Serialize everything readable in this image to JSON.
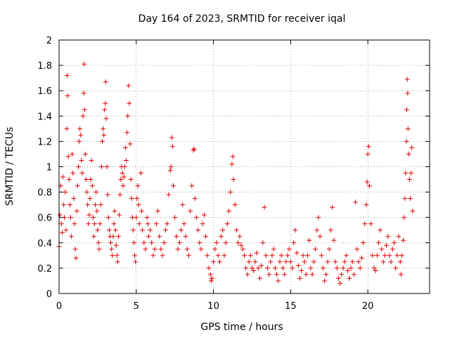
{
  "chart_data": {
    "type": "scatter",
    "title": "Day 164 of 2023, SRMTID for receiver iqal",
    "xlabel": "GPS time / hours",
    "ylabel": "SRMTID / TECUs",
    "xlim": [
      0,
      24
    ],
    "ylim": [
      0,
      2
    ],
    "x_ticks": [
      0,
      5,
      10,
      15,
      20
    ],
    "x_tick_labels": [
      "0",
      "5",
      "10",
      "15",
      "20"
    ],
    "y_ticks": [
      0,
      0.2,
      0.4,
      0.6,
      0.8,
      1,
      1.2,
      1.4,
      1.6,
      1.8,
      2
    ],
    "y_tick_labels": [
      "0",
      "0.2",
      "0.4",
      "0.6",
      "0.8",
      "1",
      "1.2",
      "1.4",
      "1.6",
      "1.8",
      "2"
    ],
    "grid": true,
    "marker": "+",
    "color": "#e00000",
    "series": [
      {
        "name": "SRMTID",
        "points": [
          [
            0.0,
            0.37
          ],
          [
            0.05,
            0.62
          ],
          [
            0.1,
            0.85
          ],
          [
            0.15,
            0.55
          ],
          [
            0.2,
            0.48
          ],
          [
            0.25,
            0.92
          ],
          [
            0.3,
            0.7
          ],
          [
            0.35,
            0.6
          ],
          [
            0.4,
            0.8
          ],
          [
            0.45,
            0.5
          ],
          [
            0.5,
            1.3
          ],
          [
            0.52,
            1.72
          ],
          [
            0.55,
            1.56
          ],
          [
            0.6,
            1.08
          ],
          [
            0.65,
            0.9
          ],
          [
            0.7,
            0.7
          ],
          [
            0.75,
            0.6
          ],
          [
            0.8,
            0.45
          ],
          [
            0.85,
            1.1
          ],
          [
            0.9,
            0.95
          ],
          [
            0.95,
            0.75
          ],
          [
            1.0,
            0.55
          ],
          [
            1.05,
            0.35
          ],
          [
            1.1,
            0.28
          ],
          [
            1.15,
            0.65
          ],
          [
            1.2,
            0.85
          ],
          [
            1.25,
            1.0
          ],
          [
            1.3,
            1.2
          ],
          [
            1.35,
            1.3
          ],
          [
            1.4,
            1.25
          ],
          [
            1.45,
            1.05
          ],
          [
            1.5,
            0.95
          ],
          [
            1.55,
            1.4
          ],
          [
            1.6,
            1.58
          ],
          [
            1.62,
            1.81
          ],
          [
            1.65,
            1.45
          ],
          [
            1.7,
            1.1
          ],
          [
            1.75,
            0.9
          ],
          [
            1.8,
            0.8
          ],
          [
            1.85,
            0.7
          ],
          [
            1.9,
            0.55
          ],
          [
            1.95,
            0.62
          ],
          [
            2.0,
            0.75
          ],
          [
            2.05,
            0.9
          ],
          [
            2.1,
            1.05
          ],
          [
            2.15,
            0.85
          ],
          [
            2.2,
            0.6
          ],
          [
            2.25,
            0.45
          ],
          [
            2.3,
            0.55
          ],
          [
            2.35,
            0.7
          ],
          [
            2.4,
            0.8
          ],
          [
            2.45,
            0.65
          ],
          [
            2.5,
            0.5
          ],
          [
            2.55,
            0.4
          ],
          [
            2.6,
            0.35
          ],
          [
            2.65,
            0.55
          ],
          [
            2.7,
            0.7
          ],
          [
            2.75,
            1.0
          ],
          [
            2.8,
            1.2
          ],
          [
            2.85,
            1.3
          ],
          [
            2.9,
            1.25
          ],
          [
            2.95,
            1.45
          ],
          [
            3.0,
            1.5
          ],
          [
            3.02,
            1.67
          ],
          [
            3.05,
            1.38
          ],
          [
            3.1,
            1.0
          ],
          [
            3.15,
            0.78
          ],
          [
            3.2,
            0.6
          ],
          [
            3.25,
            0.5
          ],
          [
            3.3,
            0.45
          ],
          [
            3.35,
            0.4
          ],
          [
            3.4,
            0.35
          ],
          [
            3.45,
            0.3
          ],
          [
            3.5,
            0.45
          ],
          [
            3.55,
            0.55
          ],
          [
            3.6,
            0.65
          ],
          [
            3.65,
            0.5
          ],
          [
            3.7,
            0.38
          ],
          [
            3.75,
            0.3
          ],
          [
            3.8,
            0.25
          ],
          [
            3.85,
            0.45
          ],
          [
            3.9,
            0.62
          ],
          [
            3.95,
            0.78
          ],
          [
            4.0,
            0.9
          ],
          [
            4.05,
            1.0
          ],
          [
            4.1,
            0.95
          ],
          [
            4.15,
            0.85
          ],
          [
            4.2,
            0.92
          ],
          [
            4.25,
            1.0
          ],
          [
            4.3,
            1.15
          ],
          [
            4.35,
            1.05
          ],
          [
            4.4,
            1.27
          ],
          [
            4.45,
            1.4
          ],
          [
            4.5,
            1.64
          ],
          [
            4.55,
            1.5
          ],
          [
            4.6,
            1.18
          ],
          [
            4.65,
            0.9
          ],
          [
            4.7,
            0.75
          ],
          [
            4.75,
            0.6
          ],
          [
            4.8,
            0.5
          ],
          [
            4.85,
            0.4
          ],
          [
            4.9,
            0.3
          ],
          [
            4.95,
            0.25
          ],
          [
            5.0,
            0.6
          ],
          [
            5.05,
            0.75
          ],
          [
            5.1,
            0.85
          ],
          [
            5.15,
            0.7
          ],
          [
            5.2,
            0.55
          ],
          [
            5.3,
            0.95
          ],
          [
            5.35,
            0.65
          ],
          [
            5.4,
            0.5
          ],
          [
            5.5,
            0.4
          ],
          [
            5.6,
            0.35
          ],
          [
            5.7,
            0.6
          ],
          [
            5.75,
            0.55
          ],
          [
            5.8,
            0.45
          ],
          [
            5.9,
            0.5
          ],
          [
            6.0,
            0.4
          ],
          [
            6.1,
            0.3
          ],
          [
            6.2,
            0.35
          ],
          [
            6.3,
            0.55
          ],
          [
            6.4,
            0.65
          ],
          [
            6.5,
            0.45
          ],
          [
            6.6,
            0.35
          ],
          [
            6.7,
            0.3
          ],
          [
            6.8,
            0.4
          ],
          [
            6.9,
            0.5
          ],
          [
            7.0,
            0.55
          ],
          [
            7.1,
            0.78
          ],
          [
            7.2,
            0.97
          ],
          [
            7.25,
            1.0
          ],
          [
            7.3,
            1.23
          ],
          [
            7.35,
            1.16
          ],
          [
            7.4,
            0.85
          ],
          [
            7.5,
            0.6
          ],
          [
            7.6,
            0.45
          ],
          [
            7.7,
            0.35
          ],
          [
            7.8,
            0.4
          ],
          [
            7.9,
            0.5
          ],
          [
            8.0,
            0.7
          ],
          [
            8.1,
            0.55
          ],
          [
            8.2,
            0.45
          ],
          [
            8.3,
            0.35
          ],
          [
            8.4,
            0.3
          ],
          [
            8.5,
            0.65
          ],
          [
            8.6,
            0.85
          ],
          [
            8.7,
            1.13
          ],
          [
            8.75,
            1.14
          ],
          [
            8.8,
            0.75
          ],
          [
            8.9,
            0.6
          ],
          [
            9.0,
            0.5
          ],
          [
            9.1,
            0.4
          ],
          [
            9.2,
            0.35
          ],
          [
            9.3,
            0.55
          ],
          [
            9.4,
            0.62
          ],
          [
            9.5,
            0.45
          ],
          [
            9.6,
            0.3
          ],
          [
            9.7,
            0.2
          ],
          [
            9.8,
            0.15
          ],
          [
            9.85,
            0.1
          ],
          [
            9.9,
            0.12
          ],
          [
            10.0,
            0.25
          ],
          [
            10.1,
            0.35
          ],
          [
            10.2,
            0.4
          ],
          [
            10.3,
            0.3
          ],
          [
            10.4,
            0.25
          ],
          [
            10.5,
            0.45
          ],
          [
            10.6,
            0.5
          ],
          [
            10.7,
            0.3
          ],
          [
            10.8,
            0.4
          ],
          [
            10.9,
            0.55
          ],
          [
            11.0,
            0.65
          ],
          [
            11.1,
            0.8
          ],
          [
            11.2,
            1.02
          ],
          [
            11.25,
            1.08
          ],
          [
            11.3,
            0.9
          ],
          [
            11.4,
            0.7
          ],
          [
            11.5,
            0.5
          ],
          [
            11.6,
            0.4
          ],
          [
            11.7,
            0.45
          ],
          [
            11.8,
            0.38
          ],
          [
            11.9,
            0.35
          ],
          [
            12.0,
            0.3
          ],
          [
            12.1,
            0.2
          ],
          [
            12.2,
            0.15
          ],
          [
            12.3,
            0.25
          ],
          [
            12.4,
            0.3
          ],
          [
            12.5,
            0.2
          ],
          [
            12.6,
            0.18
          ],
          [
            12.7,
            0.25
          ],
          [
            12.8,
            0.32
          ],
          [
            12.9,
            0.2
          ],
          [
            13.0,
            0.12
          ],
          [
            13.1,
            0.22
          ],
          [
            13.2,
            0.4
          ],
          [
            13.3,
            0.68
          ],
          [
            13.4,
            0.3
          ],
          [
            13.5,
            0.2
          ],
          [
            13.6,
            0.15
          ],
          [
            13.7,
            0.25
          ],
          [
            13.8,
            0.3
          ],
          [
            13.9,
            0.35
          ],
          [
            14.0,
            0.2
          ],
          [
            14.1,
            0.15
          ],
          [
            14.2,
            0.1
          ],
          [
            14.3,
            0.25
          ],
          [
            14.4,
            0.3
          ],
          [
            14.5,
            0.2
          ],
          [
            14.6,
            0.15
          ],
          [
            14.7,
            0.25
          ],
          [
            14.8,
            0.3
          ],
          [
            14.9,
            0.35
          ],
          [
            15.0,
            0.25
          ],
          [
            15.1,
            0.2
          ],
          [
            15.2,
            0.4
          ],
          [
            15.3,
            0.5
          ],
          [
            15.4,
            0.32
          ],
          [
            15.5,
            0.22
          ],
          [
            15.6,
            0.12
          ],
          [
            15.7,
            0.18
          ],
          [
            15.8,
            0.3
          ],
          [
            15.9,
            0.25
          ],
          [
            16.0,
            0.15
          ],
          [
            16.1,
            0.3
          ],
          [
            16.2,
            0.42
          ],
          [
            16.3,
            0.2
          ],
          [
            16.4,
            0.15
          ],
          [
            16.5,
            0.25
          ],
          [
            16.6,
            0.35
          ],
          [
            16.7,
            0.5
          ],
          [
            16.8,
            0.6
          ],
          [
            16.9,
            0.45
          ],
          [
            17.0,
            0.3
          ],
          [
            17.1,
            0.2
          ],
          [
            17.2,
            0.1
          ],
          [
            17.3,
            0.15
          ],
          [
            17.4,
            0.25
          ],
          [
            17.5,
            0.35
          ],
          [
            17.6,
            0.5
          ],
          [
            17.7,
            0.68
          ],
          [
            17.8,
            0.42
          ],
          [
            17.9,
            0.25
          ],
          [
            18.0,
            0.2
          ],
          [
            18.1,
            0.12
          ],
          [
            18.2,
            0.08
          ],
          [
            18.3,
            0.15
          ],
          [
            18.4,
            0.2
          ],
          [
            18.5,
            0.25
          ],
          [
            18.6,
            0.3
          ],
          [
            18.7,
            0.18
          ],
          [
            18.8,
            0.12
          ],
          [
            18.9,
            0.2
          ],
          [
            19.0,
            0.25
          ],
          [
            19.1,
            0.15
          ],
          [
            19.2,
            0.72
          ],
          [
            19.3,
            0.35
          ],
          [
            19.4,
            0.25
          ],
          [
            19.5,
            0.2
          ],
          [
            19.6,
            0.28
          ],
          [
            19.7,
            0.4
          ],
          [
            19.8,
            0.55
          ],
          [
            19.9,
            0.7
          ],
          [
            19.95,
            0.88
          ],
          [
            20.0,
            1.1
          ],
          [
            20.05,
            1.16
          ],
          [
            20.1,
            0.85
          ],
          [
            20.2,
            0.55
          ],
          [
            20.3,
            0.3
          ],
          [
            20.4,
            0.2
          ],
          [
            20.5,
            0.18
          ],
          [
            20.6,
            0.3
          ],
          [
            20.7,
            0.4
          ],
          [
            20.8,
            0.5
          ],
          [
            20.9,
            0.35
          ],
          [
            21.0,
            0.25
          ],
          [
            21.1,
            0.3
          ],
          [
            21.2,
            0.38
          ],
          [
            21.3,
            0.45
          ],
          [
            21.4,
            0.3
          ],
          [
            21.5,
            0.25
          ],
          [
            21.6,
            0.35
          ],
          [
            21.7,
            0.4
          ],
          [
            21.8,
            0.2
          ],
          [
            21.9,
            0.3
          ],
          [
            22.0,
            0.45
          ],
          [
            22.1,
            0.25
          ],
          [
            22.15,
            0.15
          ],
          [
            22.2,
            0.3
          ],
          [
            22.3,
            0.42
          ],
          [
            22.35,
            0.6
          ],
          [
            22.4,
            0.75
          ],
          [
            22.45,
            0.95
          ],
          [
            22.5,
            1.2
          ],
          [
            22.52,
            1.45
          ],
          [
            22.55,
            1.69
          ],
          [
            22.58,
            1.58
          ],
          [
            22.6,
            1.3
          ],
          [
            22.65,
            1.1
          ],
          [
            22.7,
            0.9
          ],
          [
            22.75,
            0.75
          ],
          [
            22.8,
            0.95
          ],
          [
            22.85,
            1.15
          ],
          [
            22.9,
            0.65
          ]
        ]
      }
    ]
  }
}
